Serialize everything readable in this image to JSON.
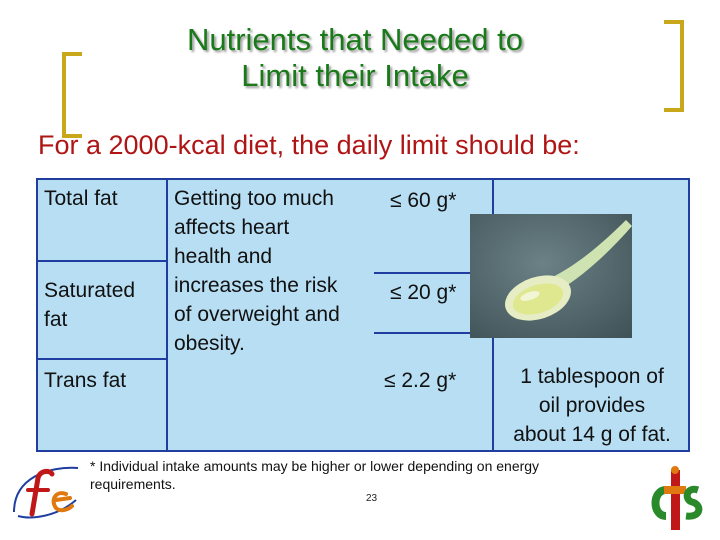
{
  "slide": {
    "title_line1": "Nutrients that Needed to",
    "title_line2": "Limit their Intake",
    "subtitle": "For a 2000-kcal diet, the daily limit should be:",
    "table": {
      "nutrients": [
        "Total fat",
        "Saturated fat",
        "Trans fat"
      ],
      "effect_lines": [
        "Getting too much",
        "affects heart",
        "health and",
        "increases the risk",
        "of overweight and",
        "obesity."
      ],
      "limits": [
        "≤ 60 g*",
        "≤ 20 g*",
        "≤ 2.2 g*"
      ],
      "caption_lines": [
        "1 tablespoon of",
        "oil provides",
        "about 14 g of fat."
      ]
    },
    "footnote": "* Individual intake amounts may be higher or lower depending on energy requirements.",
    "page_number": "23",
    "icons": [
      "spoon-photo",
      "fe-logo-icon",
      "cfs-logo-icon"
    ],
    "colors": {
      "title": "#1a7a1a",
      "subtitle": "#b01515",
      "table_fill": "#b7def3",
      "table_border": "#1f3ea0",
      "bracket": "#c8a81a"
    }
  }
}
